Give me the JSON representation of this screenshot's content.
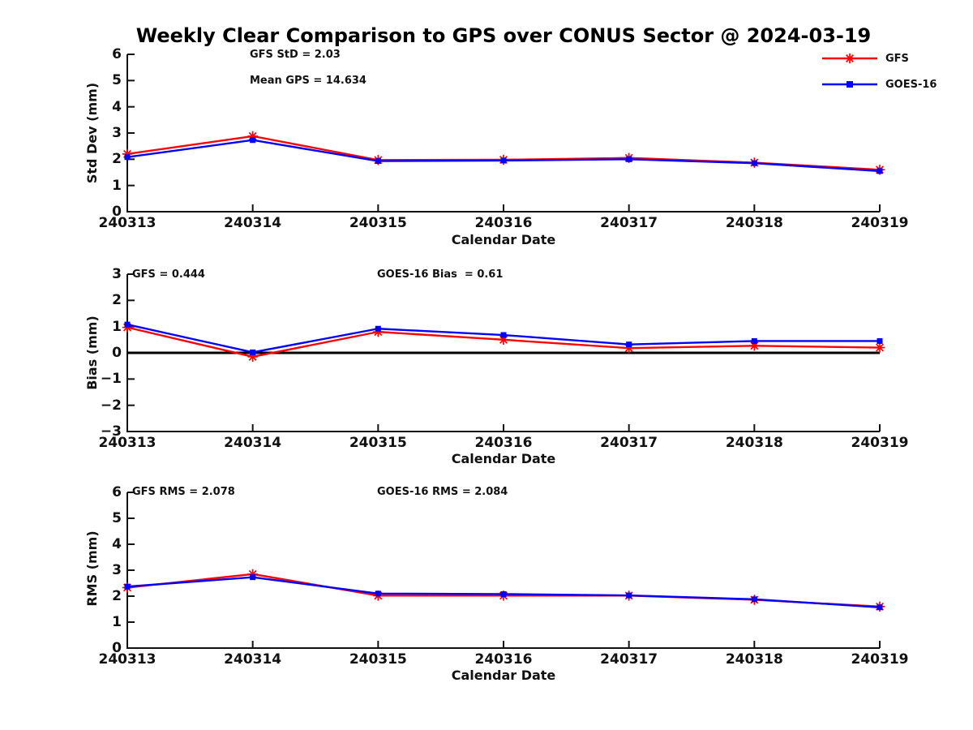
{
  "title": "Weekly Clear Comparison to GPS over CONUS Sector @ 2024-03-19",
  "colors": {
    "gfs": "#ff0000",
    "goes16": "#0000ff",
    "axis": "#111111",
    "zero_line": "#000000"
  },
  "legend": {
    "position": "top-right",
    "entries": [
      {
        "label": "GFS",
        "color": "#ff0000",
        "marker": "asterisk"
      },
      {
        "label": "GOES-16",
        "color": "#0000ff",
        "marker": "square"
      }
    ]
  },
  "chart_data": [
    {
      "type": "line",
      "name": "std-dev-panel",
      "ylabel": "Std Dev (mm)",
      "xlabel": "Calendar Date",
      "ylim": [
        0,
        6
      ],
      "yticks": [
        0,
        1,
        2,
        3,
        4,
        5,
        6
      ],
      "grid": false,
      "zero_line": false,
      "x": [
        "240313",
        "240314",
        "240315",
        "240316",
        "240317",
        "240318",
        "240319"
      ],
      "annotations": [
        "GFS StD = 2.03",
        "Mean GPS = 14.634"
      ],
      "series": [
        {
          "name": "GFS",
          "color": "#ff0000",
          "marker": "asterisk",
          "values": [
            2.2,
            2.88,
            1.97,
            1.98,
            2.05,
            1.87,
            1.6
          ]
        },
        {
          "name": "GOES-16",
          "color": "#0000ff",
          "marker": "square",
          "values": [
            2.08,
            2.73,
            1.93,
            1.95,
            2.0,
            1.85,
            1.55
          ]
        }
      ]
    },
    {
      "type": "line",
      "name": "bias-panel",
      "ylabel": "Bias (mm)",
      "xlabel": "Calendar Date",
      "ylim": [
        -3,
        3
      ],
      "yticks": [
        -3,
        -2,
        -1,
        0,
        1,
        2,
        3
      ],
      "grid": false,
      "zero_line": true,
      "x": [
        "240313",
        "240314",
        "240315",
        "240316",
        "240317",
        "240318",
        "240319"
      ],
      "annotations": [
        "GFS = 0.444",
        "GOES-16 Bias  = 0.61"
      ],
      "series": [
        {
          "name": "GFS",
          "color": "#ff0000",
          "marker": "asterisk",
          "values": [
            0.97,
            -0.15,
            0.8,
            0.5,
            0.18,
            0.27,
            0.2
          ]
        },
        {
          "name": "GOES-16",
          "color": "#0000ff",
          "marker": "square",
          "values": [
            1.08,
            0.02,
            0.92,
            0.68,
            0.32,
            0.45,
            0.45
          ]
        }
      ]
    },
    {
      "type": "line",
      "name": "rms-panel",
      "ylabel": "RMS (mm)",
      "xlabel": "Calendar Date",
      "ylim": [
        0,
        6
      ],
      "yticks": [
        0,
        1,
        2,
        3,
        4,
        5,
        6
      ],
      "grid": false,
      "zero_line": false,
      "x": [
        "240313",
        "240314",
        "240315",
        "240316",
        "240317",
        "240318",
        "240319"
      ],
      "annotations": [
        "GFS RMS = 2.078",
        "GOES-16 RMS = 2.084"
      ],
      "series": [
        {
          "name": "GFS",
          "color": "#ff0000",
          "marker": "asterisk",
          "values": [
            2.33,
            2.85,
            2.02,
            2.02,
            2.02,
            1.86,
            1.6
          ]
        },
        {
          "name": "GOES-16",
          "color": "#0000ff",
          "marker": "square",
          "values": [
            2.37,
            2.73,
            2.1,
            2.08,
            2.03,
            1.88,
            1.57
          ]
        }
      ]
    }
  ]
}
